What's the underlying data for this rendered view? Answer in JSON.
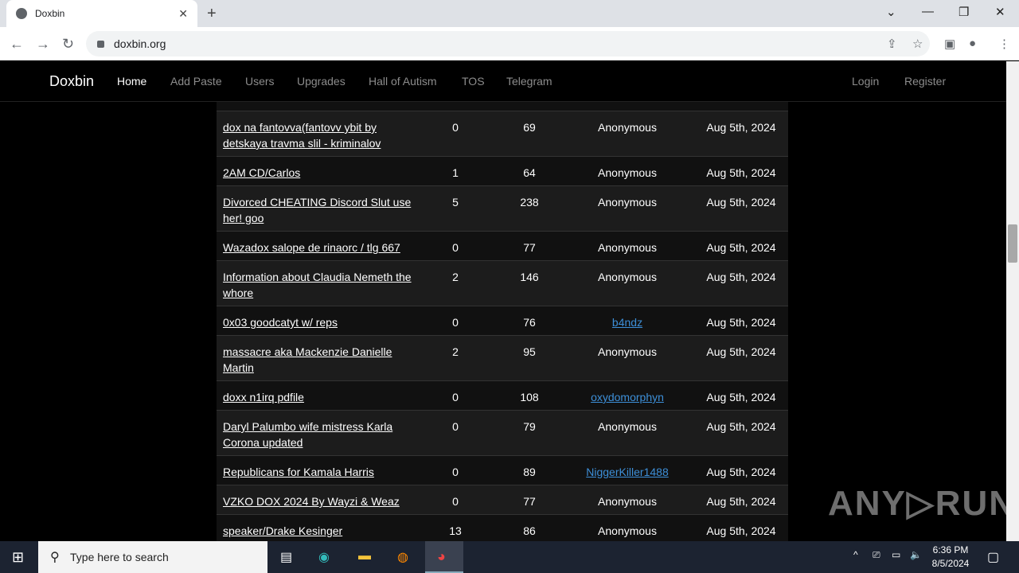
{
  "browser": {
    "tab_title": "Doxbin",
    "url": "doxbin.org"
  },
  "site": {
    "brand": "Doxbin",
    "nav": [
      "Home",
      "Add Paste",
      "Users",
      "Upgrades",
      "Hall of Autism",
      "TOS",
      "Telegram"
    ],
    "login": "Login",
    "register": "Register"
  },
  "rows": [
    {
      "title": "dox na fantovva(fantovv ybit by detskaya travma slil - kriminalov",
      "comments": "0",
      "views": "69",
      "author": "Anonymous",
      "date": "Aug 5th, 2024",
      "lines": 2
    },
    {
      "title": "2AM CD/Carlos",
      "comments": "1",
      "views": "64",
      "author": "Anonymous",
      "date": "Aug 5th, 2024",
      "lines": 1
    },
    {
      "title": "Divorced CHEATING Discord Slut use her! goo",
      "comments": "5",
      "views": "238",
      "author": "Anonymous",
      "date": "Aug 5th, 2024",
      "lines": 2
    },
    {
      "title": "Wazadox salope de rinaorc / tlg 667",
      "comments": "0",
      "views": "77",
      "author": "Anonymous",
      "date": "Aug 5th, 2024",
      "lines": 1
    },
    {
      "title": "Information about Claudia Nemeth the whore",
      "comments": "2",
      "views": "146",
      "author": "Anonymous",
      "date": "Aug 5th, 2024",
      "lines": 2
    },
    {
      "title": "0x03 goodcatyt w/ reps",
      "comments": "0",
      "views": "76",
      "author": "b4ndz",
      "author_link": true,
      "date": "Aug 5th, 2024",
      "lines": 1
    },
    {
      "title": "massacre aka Mackenzie Danielle Martin",
      "comments": "2",
      "views": "95",
      "author": "Anonymous",
      "date": "Aug 5th, 2024",
      "lines": 2
    },
    {
      "title": "doxx n1irq pdfile",
      "comments": "0",
      "views": "108",
      "author": "oxydomorphyn",
      "author_link": true,
      "date": "Aug 5th, 2024",
      "lines": 1
    },
    {
      "title": "Daryl Palumbo wife mistress Karla Corona updated",
      "comments": "0",
      "views": "79",
      "author": "Anonymous",
      "date": "Aug 5th, 2024",
      "lines": 2
    },
    {
      "title": "Republicans for Kamala Harris",
      "comments": "0",
      "views": "89",
      "author": "NiggerKiller1488",
      "author_link": true,
      "date": "Aug 5th, 2024",
      "lines": 1
    },
    {
      "title": "VZKO DOX 2024 By Wayzi & Weaz",
      "comments": "0",
      "views": "77",
      "author": "Anonymous",
      "date": "Aug 5th, 2024",
      "lines": 1
    },
    {
      "title": "speaker/Drake Kesinger",
      "comments": "13",
      "views": "86",
      "author": "Anonymous",
      "date": "Aug 5th, 2024",
      "lines": 1
    }
  ],
  "watermark": "ANY RUN",
  "taskbar": {
    "search_placeholder": "Type here to search",
    "time": "6:36 PM",
    "date": "8/5/2024"
  }
}
